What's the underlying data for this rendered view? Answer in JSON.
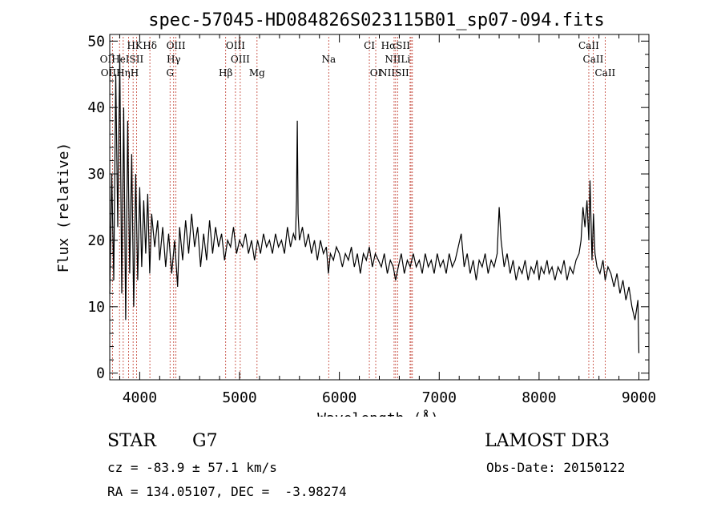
{
  "chart_data": {
    "type": "line",
    "title": "spec-57045-HD084826S023115B01_sp07-094.fits",
    "xlabel": "Wavelength (Å)",
    "ylabel": "Flux (relative)",
    "xlim": [
      3700,
      9100
    ],
    "ylim": [
      -1,
      51
    ],
    "xticks": [
      4000,
      5000,
      6000,
      7000,
      8000,
      9000
    ],
    "yticks": [
      0,
      10,
      20,
      30,
      40,
      50
    ],
    "x_minor_step": 200,
    "y_minor_step": 2,
    "line_color": "#000000",
    "marker_color": "#c0392b",
    "series": [
      {
        "name": "flux",
        "points": [
          [
            3700,
            12
          ],
          [
            3720,
            30
          ],
          [
            3740,
            14
          ],
          [
            3760,
            45
          ],
          [
            3780,
            22
          ],
          [
            3800,
            48
          ],
          [
            3820,
            12
          ],
          [
            3840,
            40
          ],
          [
            3860,
            8
          ],
          [
            3880,
            38
          ],
          [
            3900,
            15
          ],
          [
            3920,
            33
          ],
          [
            3940,
            10
          ],
          [
            3960,
            30
          ],
          [
            3980,
            14
          ],
          [
            4000,
            28
          ],
          [
            4020,
            16
          ],
          [
            4040,
            26
          ],
          [
            4060,
            18
          ],
          [
            4080,
            27
          ],
          [
            4100,
            15
          ],
          [
            4120,
            24
          ],
          [
            4150,
            19
          ],
          [
            4180,
            23
          ],
          [
            4200,
            17
          ],
          [
            4230,
            22
          ],
          [
            4260,
            16
          ],
          [
            4290,
            21
          ],
          [
            4320,
            15
          ],
          [
            4350,
            20
          ],
          [
            4380,
            13
          ],
          [
            4400,
            22
          ],
          [
            4430,
            17
          ],
          [
            4460,
            23
          ],
          [
            4490,
            18
          ],
          [
            4520,
            24
          ],
          [
            4550,
            19
          ],
          [
            4580,
            22
          ],
          [
            4610,
            16
          ],
          [
            4640,
            21
          ],
          [
            4670,
            17
          ],
          [
            4700,
            23
          ],
          [
            4730,
            18
          ],
          [
            4760,
            22
          ],
          [
            4790,
            19
          ],
          [
            4820,
            21
          ],
          [
            4850,
            17
          ],
          [
            4880,
            20
          ],
          [
            4910,
            19
          ],
          [
            4940,
            22
          ],
          [
            4970,
            18
          ],
          [
            5000,
            20
          ],
          [
            5030,
            19
          ],
          [
            5060,
            21
          ],
          [
            5090,
            18
          ],
          [
            5120,
            20
          ],
          [
            5150,
            17
          ],
          [
            5180,
            20
          ],
          [
            5210,
            18
          ],
          [
            5240,
            21
          ],
          [
            5270,
            19
          ],
          [
            5300,
            20
          ],
          [
            5330,
            18
          ],
          [
            5360,
            21
          ],
          [
            5390,
            19
          ],
          [
            5420,
            20
          ],
          [
            5450,
            18
          ],
          [
            5480,
            22
          ],
          [
            5510,
            19
          ],
          [
            5540,
            21
          ],
          [
            5560,
            20
          ],
          [
            5570,
            26
          ],
          [
            5578,
            38
          ],
          [
            5586,
            24
          ],
          [
            5600,
            20
          ],
          [
            5630,
            22
          ],
          [
            5660,
            19
          ],
          [
            5690,
            21
          ],
          [
            5720,
            18
          ],
          [
            5750,
            20
          ],
          [
            5780,
            17
          ],
          [
            5810,
            20
          ],
          [
            5840,
            18
          ],
          [
            5870,
            19
          ],
          [
            5890,
            15
          ],
          [
            5910,
            18
          ],
          [
            5940,
            17
          ],
          [
            5970,
            19
          ],
          [
            6000,
            18
          ],
          [
            6030,
            16
          ],
          [
            6060,
            18
          ],
          [
            6090,
            17
          ],
          [
            6120,
            19
          ],
          [
            6150,
            16
          ],
          [
            6180,
            18
          ],
          [
            6210,
            15
          ],
          [
            6240,
            18
          ],
          [
            6270,
            17
          ],
          [
            6300,
            19
          ],
          [
            6330,
            16
          ],
          [
            6360,
            18
          ],
          [
            6390,
            17
          ],
          [
            6420,
            16
          ],
          [
            6450,
            18
          ],
          [
            6480,
            15
          ],
          [
            6510,
            17
          ],
          [
            6540,
            16
          ],
          [
            6563,
            14
          ],
          [
            6590,
            16
          ],
          [
            6620,
            18
          ],
          [
            6650,
            15
          ],
          [
            6680,
            17
          ],
          [
            6710,
            16
          ],
          [
            6740,
            18
          ],
          [
            6770,
            16
          ],
          [
            6800,
            17
          ],
          [
            6830,
            15
          ],
          [
            6860,
            18
          ],
          [
            6890,
            16
          ],
          [
            6920,
            17
          ],
          [
            6950,
            15
          ],
          [
            6980,
            18
          ],
          [
            7010,
            16
          ],
          [
            7040,
            17
          ],
          [
            7070,
            15
          ],
          [
            7100,
            18
          ],
          [
            7130,
            16
          ],
          [
            7160,
            17
          ],
          [
            7190,
            19
          ],
          [
            7220,
            21
          ],
          [
            7250,
            16
          ],
          [
            7280,
            18
          ],
          [
            7310,
            15
          ],
          [
            7340,
            17
          ],
          [
            7370,
            14
          ],
          [
            7400,
            17
          ],
          [
            7430,
            16
          ],
          [
            7460,
            18
          ],
          [
            7490,
            15
          ],
          [
            7520,
            17
          ],
          [
            7550,
            16
          ],
          [
            7580,
            18
          ],
          [
            7600,
            25
          ],
          [
            7620,
            20
          ],
          [
            7650,
            16
          ],
          [
            7680,
            18
          ],
          [
            7710,
            15
          ],
          [
            7740,
            17
          ],
          [
            7770,
            14
          ],
          [
            7800,
            16
          ],
          [
            7830,
            15
          ],
          [
            7860,
            17
          ],
          [
            7890,
            14
          ],
          [
            7920,
            16
          ],
          [
            7950,
            15
          ],
          [
            7980,
            17
          ],
          [
            8000,
            14
          ],
          [
            8020,
            16
          ],
          [
            8050,
            15
          ],
          [
            8080,
            17
          ],
          [
            8100,
            15
          ],
          [
            8130,
            16
          ],
          [
            8160,
            14
          ],
          [
            8190,
            16
          ],
          [
            8220,
            15
          ],
          [
            8250,
            17
          ],
          [
            8280,
            14
          ],
          [
            8310,
            16
          ],
          [
            8340,
            15
          ],
          [
            8370,
            17
          ],
          [
            8400,
            18
          ],
          [
            8420,
            20
          ],
          [
            8440,
            25
          ],
          [
            8460,
            22
          ],
          [
            8480,
            26
          ],
          [
            8498,
            20
          ],
          [
            8510,
            29
          ],
          [
            8530,
            17
          ],
          [
            8545,
            24
          ],
          [
            8560,
            18
          ],
          [
            8580,
            16
          ],
          [
            8610,
            15
          ],
          [
            8640,
            17
          ],
          [
            8662,
            14
          ],
          [
            8690,
            16
          ],
          [
            8720,
            15
          ],
          [
            8750,
            13
          ],
          [
            8780,
            15
          ],
          [
            8810,
            12
          ],
          [
            8840,
            14
          ],
          [
            8870,
            11
          ],
          [
            8900,
            13
          ],
          [
            8930,
            10
          ],
          [
            8960,
            8
          ],
          [
            8990,
            11
          ],
          [
            9000,
            3
          ]
        ]
      }
    ],
    "annotations": [
      {
        "label": "HK",
        "x": 3950,
        "row": 1
      },
      {
        "label": "Hδ",
        "x": 4102,
        "row": 1
      },
      {
        "label": "OIII",
        "x": 4363,
        "row": 1
      },
      {
        "label": "OIII",
        "x": 4959,
        "row": 1
      },
      {
        "label": "CI",
        "x": 6300,
        "row": 1
      },
      {
        "label": "HαSII",
        "x": 6563,
        "row": 1
      },
      {
        "label": "CaII",
        "x": 8498,
        "row": 1
      },
      {
        "label": "OIHeISII",
        "x": 3820,
        "row": 2
      },
      {
        "label": "Hγ",
        "x": 4340,
        "row": 2
      },
      {
        "label": "OIII",
        "x": 5007,
        "row": 2
      },
      {
        "label": "Na",
        "x": 5893,
        "row": 2
      },
      {
        "label": "NIILi",
        "x": 6583,
        "row": 2
      },
      {
        "label": "CaII",
        "x": 8542,
        "row": 2
      },
      {
        "label": "OIIHηH",
        "x": 3800,
        "row": 3
      },
      {
        "label": "G",
        "x": 4304,
        "row": 3
      },
      {
        "label": "Hβ",
        "x": 4861,
        "row": 3
      },
      {
        "label": "Mg",
        "x": 5175,
        "row": 3
      },
      {
        "label": "OI",
        "x": 6364,
        "row": 3
      },
      {
        "label": "NIISII",
        "x": 6548,
        "row": 3
      },
      {
        "label": "CaII",
        "x": 8662,
        "row": 3
      }
    ],
    "marker_lines": [
      3727,
      3798,
      3835,
      3889,
      3934,
      3969,
      4102,
      4304,
      4340,
      4363,
      4861,
      4959,
      5007,
      5175,
      5893,
      6300,
      6364,
      6548,
      6563,
      6583,
      6708,
      6717,
      6731,
      8498,
      8542,
      8662
    ]
  },
  "info": {
    "object_class": "STAR",
    "subclass": "G7",
    "survey": "LAMOST DR3",
    "redshift_text": "cz = -83.9 ± 57.1 km/s",
    "obs_date": "Obs-Date: 20150122",
    "coords": "RA = 134.05107, DEC =  -3.98274"
  }
}
